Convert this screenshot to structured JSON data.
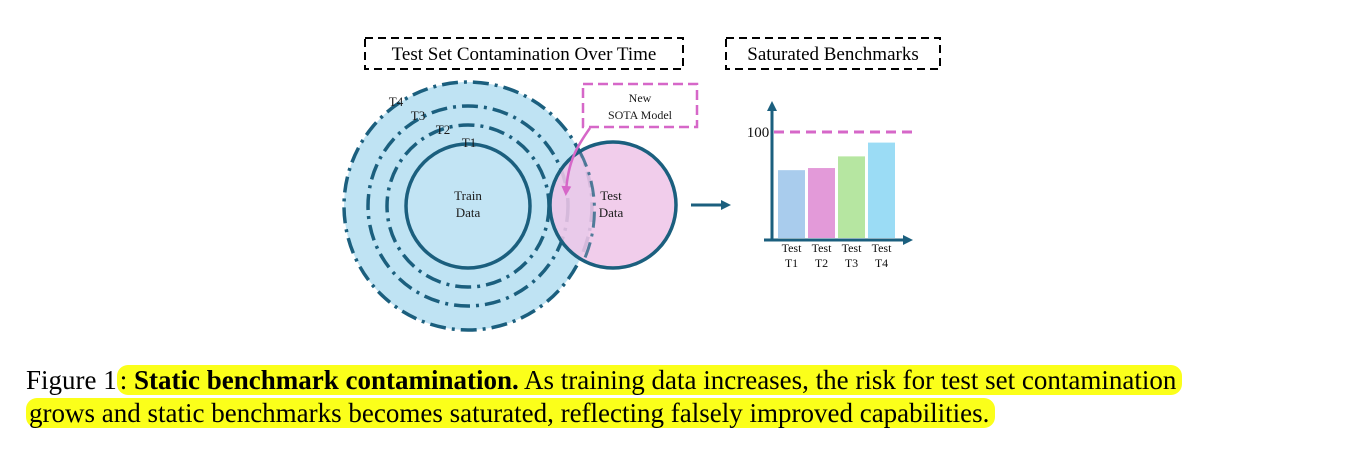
{
  "figure": {
    "left_panel_title": "Test Set Contamination Over Time",
    "right_panel_title": "Saturated Benchmarks",
    "rings": [
      "T1",
      "T2",
      "T3",
      "T4"
    ],
    "train_circle": [
      "Train",
      "Data"
    ],
    "test_circle": [
      "Test",
      "Data"
    ],
    "sota_box": [
      "New",
      "SOTA Model"
    ],
    "colors": {
      "ring_stroke": "#1b5f7e",
      "outer_fill": "#bfe3f3",
      "test_fill": "#efc6e8",
      "sota_magenta": "#d667c8",
      "arrow": "#1b5f7e"
    }
  },
  "chart_data": {
    "type": "bar",
    "title": "Saturated Benchmarks",
    "categories": [
      [
        "Test",
        "T1"
      ],
      [
        "Test",
        "T2"
      ],
      [
        "Test",
        "T3"
      ],
      [
        "Test",
        "T4"
      ]
    ],
    "values": [
      64,
      66,
      77,
      90
    ],
    "colors": [
      "#a9cced",
      "#e39ad9",
      "#b6e6a1",
      "#9bdcf5"
    ],
    "reference_line": {
      "value": 100,
      "label": "100",
      "color": "#d667c8",
      "style": "dashed"
    },
    "ylim": [
      0,
      110
    ],
    "xlabel": "",
    "ylabel": ""
  },
  "caption": {
    "prefix": "Figure 1",
    "colon": ": ",
    "bold": "Static benchmark contamination.",
    "line1_rest": " As training data increases, the risk for test set contamination",
    "line2": "grows and static benchmarks becomes saturated, reflecting falsely improved capabilities."
  }
}
